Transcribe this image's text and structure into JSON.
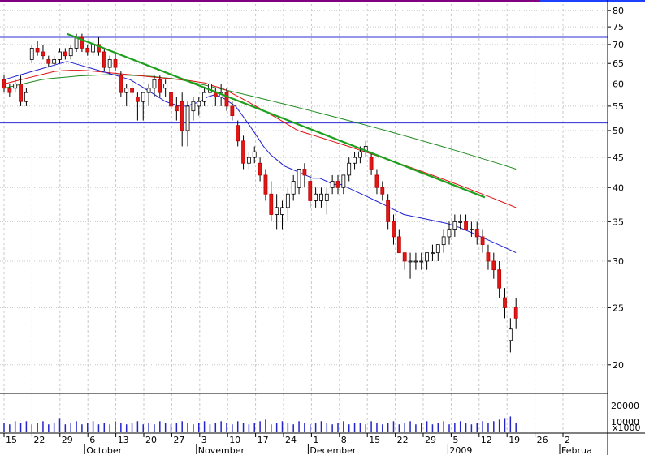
{
  "chart_data": {
    "type": "candlestick",
    "scale": "log",
    "grid": true,
    "ylim": [
      18,
      82
    ],
    "y_ticks": [
      20,
      25,
      30,
      35,
      40,
      45,
      50,
      55,
      60,
      65,
      70,
      75,
      80
    ],
    "x_day_labels": [
      "15",
      "22",
      "29",
      "6",
      "13",
      "20",
      "27",
      "3",
      "10",
      "17",
      "24",
      "1",
      "8",
      "15",
      "22",
      "29",
      "5",
      "12",
      "19",
      "26",
      "2"
    ],
    "x_month_labels": [
      "October",
      "November",
      "December",
      "2009",
      "Februa"
    ],
    "horizontal_lines": [
      72,
      51.5
    ],
    "trendline": {
      "start": [
        5,
        73
      ],
      "end": [
        95,
        38.5
      ]
    },
    "volume_ticks": [
      "20000",
      "10000"
    ],
    "volume_unit": "x1000",
    "candles": [
      [
        61,
        62,
        58,
        59
      ],
      [
        59,
        60,
        57,
        58
      ],
      [
        59,
        61,
        58,
        60
      ],
      [
        60,
        62,
        55,
        56
      ],
      [
        56,
        59,
        55,
        58
      ],
      [
        66,
        70,
        65,
        69
      ],
      [
        69,
        71,
        67,
        68
      ],
      [
        68,
        70,
        66,
        67
      ],
      [
        66,
        67,
        64,
        65
      ],
      [
        65,
        67,
        64,
        66
      ],
      [
        66,
        69,
        65,
        68
      ],
      [
        68,
        69,
        66,
        67
      ],
      [
        67,
        70,
        66,
        69
      ],
      [
        69,
        73,
        68,
        72
      ],
      [
        72,
        73,
        68,
        69
      ],
      [
        69,
        70,
        67,
        68
      ],
      [
        68,
        71,
        67,
        70
      ],
      [
        70,
        72,
        67,
        68
      ],
      [
        68,
        69,
        63,
        64
      ],
      [
        64,
        67,
        62,
        66
      ],
      [
        66,
        68,
        63,
        64
      ],
      [
        62,
        63,
        57,
        58
      ],
      [
        58,
        60,
        55,
        59
      ],
      [
        59,
        61,
        57,
        58
      ],
      [
        57,
        58,
        52,
        56
      ],
      [
        56,
        58,
        52,
        58
      ],
      [
        58,
        60,
        55,
        59
      ],
      [
        59,
        62,
        57,
        61
      ],
      [
        61,
        62,
        57,
        58
      ],
      [
        59,
        61,
        57,
        60
      ],
      [
        58,
        60,
        52,
        55
      ],
      [
        55,
        57,
        52,
        54
      ],
      [
        56,
        58,
        47,
        50
      ],
      [
        50,
        56,
        47,
        55
      ],
      [
        54,
        57,
        52,
        56
      ],
      [
        55,
        57,
        53,
        56
      ],
      [
        56,
        59,
        55,
        58
      ],
      [
        58,
        61,
        57,
        60
      ],
      [
        58,
        59,
        55,
        57
      ],
      [
        57,
        60,
        55,
        58
      ],
      [
        58,
        59,
        54,
        55
      ],
      [
        55,
        56,
        52,
        53
      ],
      [
        51,
        52,
        47,
        48
      ],
      [
        48,
        49,
        43,
        44
      ],
      [
        44,
        46,
        43,
        45
      ],
      [
        45,
        47,
        44,
        46
      ],
      [
        44,
        45,
        41,
        42
      ],
      [
        42,
        43,
        38,
        39
      ],
      [
        39,
        41,
        35,
        36
      ],
      [
        36,
        39,
        34,
        37
      ],
      [
        36,
        38,
        34,
        37
      ],
      [
        37,
        40,
        35,
        39
      ],
      [
        39,
        42,
        38,
        41
      ],
      [
        40,
        43,
        39,
        43
      ],
      [
        43,
        44,
        40,
        42
      ],
      [
        41,
        42,
        37,
        38
      ],
      [
        38,
        40,
        37,
        39
      ],
      [
        38,
        40,
        37,
        39
      ],
      [
        38,
        40,
        36,
        39
      ],
      [
        40,
        42,
        39,
        41
      ],
      [
        41,
        42,
        39,
        40
      ],
      [
        40,
        42,
        39,
        42
      ],
      [
        42,
        45,
        41,
        44
      ],
      [
        44,
        46,
        43,
        45
      ],
      [
        45,
        47,
        44,
        46
      ],
      [
        46,
        48,
        45,
        47
      ],
      [
        45,
        46,
        42,
        43
      ],
      [
        42,
        43,
        39,
        40
      ],
      [
        40,
        41,
        38,
        39
      ],
      [
        38,
        39,
        34,
        35
      ],
      [
        35,
        36,
        32,
        33
      ],
      [
        33,
        34,
        31,
        31
      ],
      [
        31,
        31,
        29,
        30
      ],
      [
        30,
        31,
        28,
        30
      ],
      [
        30,
        31,
        29,
        30
      ],
      [
        30,
        31,
        29,
        30
      ],
      [
        30,
        31,
        29,
        31
      ],
      [
        31,
        32,
        30,
        31
      ],
      [
        31,
        32,
        30,
        32
      ],
      [
        32,
        34,
        31,
        33
      ],
      [
        33,
        35,
        32,
        34
      ],
      [
        34,
        36,
        33,
        35
      ],
      [
        35,
        36,
        34,
        35
      ],
      [
        35,
        36,
        34,
        34
      ],
      [
        34,
        35,
        33,
        34
      ],
      [
        34,
        35,
        32,
        33
      ],
      [
        33,
        34,
        31,
        32
      ],
      [
        31,
        32,
        29,
        30
      ],
      [
        30,
        31,
        28,
        29
      ],
      [
        29,
        30,
        26,
        27
      ],
      [
        26,
        27,
        24,
        25
      ],
      [
        22,
        24,
        21,
        23
      ],
      [
        25,
        26,
        23,
        24
      ]
    ],
    "volume": [
      6,
      5,
      7,
      6,
      7,
      5,
      6,
      7,
      5,
      6,
      9,
      5,
      6,
      7,
      5,
      6,
      7,
      5,
      6,
      5,
      7,
      6,
      5,
      6,
      7,
      5,
      6,
      5,
      7,
      6,
      5,
      6,
      7,
      6,
      5,
      6,
      7,
      5,
      6,
      7,
      6,
      5,
      7,
      6,
      5,
      6,
      7,
      8,
      5,
      6,
      7,
      6,
      5,
      7,
      6,
      5,
      6,
      7,
      6,
      5,
      6,
      7,
      5,
      6,
      6,
      5,
      7,
      6,
      5,
      6,
      7,
      5,
      6,
      7,
      5,
      6,
      7,
      5,
      6,
      7,
      5,
      6,
      7,
      6,
      5,
      6,
      7,
      6,
      7,
      8,
      9,
      10,
      6
    ],
    "ma_blue": [
      61,
      61.5,
      62,
      62.5,
      63,
      63.5,
      64,
      64.5,
      65,
      65.5,
      65,
      64.5,
      64,
      63.5,
      63,
      62.5,
      62,
      61.5,
      61,
      60,
      59,
      58,
      57,
      56,
      55.5,
      55,
      55,
      55.5,
      56,
      57,
      57.5,
      57,
      56,
      55,
      53,
      51,
      49,
      47,
      45.5,
      44.5,
      43.5,
      43,
      42.5,
      42,
      41.5,
      41.5,
      41,
      40.5,
      40.5,
      40,
      39.5,
      39,
      38.5,
      38,
      37.5,
      37,
      36.5,
      36,
      35.8,
      35.6,
      35.4,
      35.2,
      35,
      34.8,
      34.5,
      34.2,
      33.8,
      33.4,
      33,
      32.6,
      32.2,
      31.8,
      31.4,
      31
    ],
    "ma_red": [
      60,
      60.5,
      61,
      61.5,
      62,
      62.5,
      63,
      63.2,
      63.3,
      63.3,
      63.2,
      63,
      62.8,
      62.6,
      62.4,
      62.2,
      62,
      61.8,
      61.6,
      61.4,
      61.2,
      61,
      60.8,
      60.5,
      60.2,
      59.5,
      59,
      58,
      57,
      56,
      55,
      54,
      53,
      52,
      51,
      50,
      49.5,
      49,
      48.5,
      48,
      47.5,
      47,
      46.5,
      46,
      45.5,
      45,
      44.5,
      44,
      43.5,
      43,
      42.5,
      42,
      41.5,
      41,
      40.5,
      40,
      39.5,
      39,
      38.5,
      38,
      37.5,
      37
    ],
    "ma_green": [
      59,
      59.5,
      60,
      60.5,
      61,
      61.3,
      61.5,
      61.7,
      61.9,
      62,
      62.1,
      62.2,
      62.2,
      62.1,
      62,
      61.9,
      61.8,
      61.5,
      61.3,
      61,
      60.5,
      60,
      59.5,
      59,
      58.5,
      58,
      57.5,
      57,
      56.5,
      56,
      55.5,
      55,
      54.5,
      54,
      53.5,
      53,
      52.5,
      52,
      51.5,
      51,
      50.5,
      50,
      49.5,
      49,
      48.5,
      48,
      47.5,
      47,
      46.5,
      46,
      45.5,
      45,
      44.5,
      44,
      43.5,
      43
    ]
  }
}
